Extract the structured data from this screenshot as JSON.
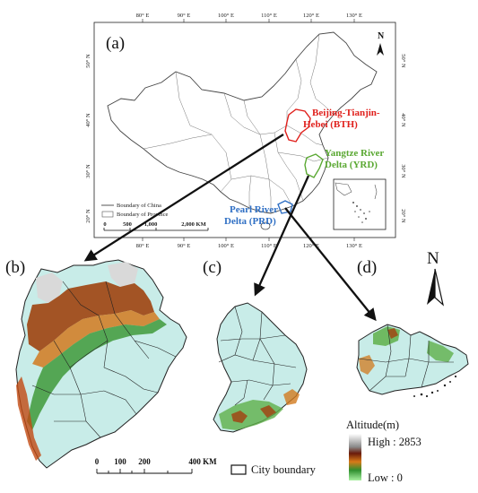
{
  "panel_labels": {
    "a": "(a)",
    "b": "(b)",
    "c": "(c)",
    "d": "(d)"
  },
  "top_ticks": [
    "80° E",
    "90° E",
    "100° E",
    "110° E",
    "120° E",
    "130° E"
  ],
  "bottom_ticks": [
    "80° E",
    "90° E",
    "100° E",
    "110° E",
    "120° E",
    "130° E"
  ],
  "left_ticks": [
    "50° N",
    "40° N",
    "30° N",
    "20° N"
  ],
  "right_ticks": [
    "50° N",
    "40° N",
    "30° N",
    "20° N"
  ],
  "regions": {
    "bth": {
      "line1": "Beijing-Tianjin-",
      "line2": "Hebei (BTH)",
      "color": "#e0201c"
    },
    "yrd": {
      "line1": "Yangtze River",
      "line2": "Delta (YRD)",
      "color": "#5aa832"
    },
    "prd": {
      "line1": "Pearl River",
      "line2": "Delta (PRD)",
      "color": "#2f6fc4"
    }
  },
  "inset_legend": {
    "china": "Boundary of China",
    "province": "Boundary of Province"
  },
  "inset_scale": {
    "labels": [
      "0",
      "500",
      "1,000",
      "2,000 KM"
    ]
  },
  "north": {
    "small": "N",
    "big": "N"
  },
  "scale_bar": {
    "labels": [
      "0",
      "100",
      "200",
      "400 KM"
    ]
  },
  "city_boundary": "City boundary",
  "altitude": {
    "title": "Altitude(m)",
    "high": "High : 2853",
    "low": "Low : 0"
  },
  "colors": {
    "land": "#c8ece8",
    "boundary": "#222222",
    "mountain_dark": "#7a2a0c",
    "mountain_mid": "#c96a1a",
    "forest": "#3f9a3a",
    "snow": "#e6e6e6"
  }
}
